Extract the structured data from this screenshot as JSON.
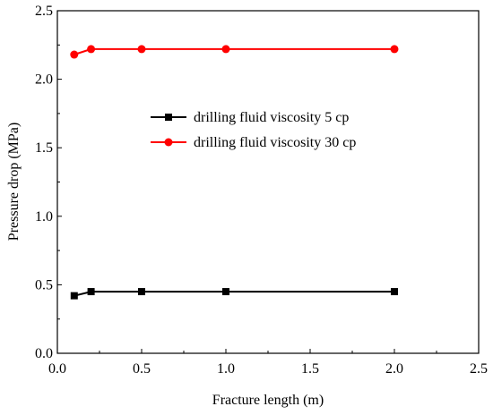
{
  "chart_data": {
    "type": "line",
    "title": "",
    "xlabel": "Fracture length  (m)",
    "ylabel": "Pressure drop (MPa)",
    "xlim": [
      0.0,
      2.5
    ],
    "ylim": [
      0.0,
      2.5
    ],
    "xticks": [
      "0.0",
      "0.5",
      "1.0",
      "1.5",
      "2.0",
      "2.5"
    ],
    "yticks": [
      "0.0",
      "0.5",
      "1.0",
      "1.5",
      "2.0",
      "2.5"
    ],
    "grid": false,
    "legend_position": "center-right",
    "series": [
      {
        "name": "drilling fluid viscosity 5 cp",
        "color": "#000000",
        "marker": "square",
        "x": [
          0.1,
          0.2,
          0.5,
          1.0,
          2.0
        ],
        "y": [
          0.42,
          0.45,
          0.45,
          0.45,
          0.45
        ]
      },
      {
        "name": "drilling fluid viscosity 30 cp",
        "color": "#ff0000",
        "marker": "circle",
        "x": [
          0.1,
          0.2,
          0.5,
          1.0,
          2.0
        ],
        "y": [
          2.18,
          2.22,
          2.22,
          2.22,
          2.22
        ]
      }
    ]
  }
}
